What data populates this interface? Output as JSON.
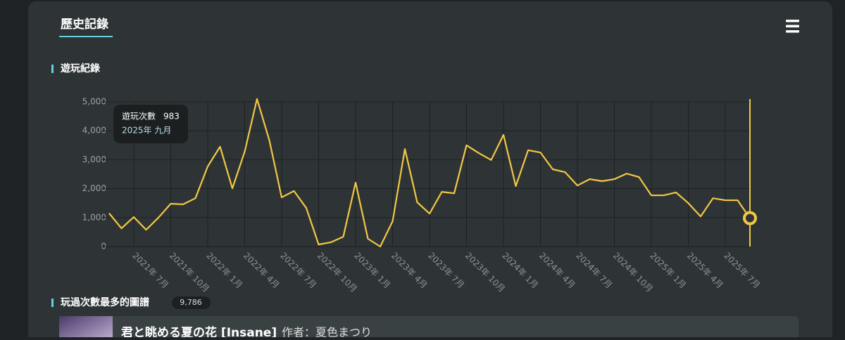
{
  "header": {
    "tab": "歷史記錄"
  },
  "sections": [
    {
      "title": "遊玩紀錄"
    },
    {
      "title": "玩過次數最多的圖譜",
      "badge": "9,786"
    }
  ],
  "chart_data": {
    "type": "line",
    "color": "#f2c744",
    "grid": true,
    "categories": [
      null,
      null,
      "2021年 7月",
      null,
      null,
      "2021年 10月",
      null,
      null,
      "2022年 1月",
      null,
      null,
      "2022年 4月",
      null,
      null,
      "2022年 7月",
      null,
      null,
      "2022年 10月",
      null,
      null,
      "2023年 1月",
      null,
      null,
      "2023年 4月",
      null,
      null,
      "2023年 7月",
      null,
      null,
      "2023年 10月",
      null,
      null,
      "2024年 1月",
      null,
      null,
      "2024年 4月",
      null,
      null,
      "2024年 7月",
      null,
      null,
      "2024年 10月",
      null,
      null,
      "2025年 1月",
      null,
      null,
      "2025年 4月",
      null,
      null,
      "2025年 7月",
      null,
      null
    ],
    "values": [
      1150,
      630,
      1020,
      580,
      1000,
      1480,
      1460,
      1670,
      2770,
      3450,
      2010,
      3280,
      5100,
      3670,
      1700,
      1920,
      1330,
      70,
      150,
      340,
      2210,
      270,
      0,
      870,
      3370,
      1530,
      1140,
      1890,
      1840,
      3500,
      3230,
      2990,
      3860,
      2090,
      3330,
      3250,
      2670,
      2570,
      2110,
      2330,
      2260,
      2330,
      2520,
      2400,
      1770,
      1770,
      1870,
      1500,
      1040,
      1670,
      1600,
      1600,
      983
    ],
    "ylim": [
      0,
      5000
    ],
    "yticks": [
      0,
      {
        "value": 1000,
        "label": "1,000"
      },
      {
        "value": 2000,
        "label": "2,000"
      },
      {
        "value": 3000,
        "label": "3,000"
      },
      {
        "value": 4000,
        "label": "4,000"
      },
      {
        "value": 5000,
        "label": "5,000"
      }
    ],
    "tooltip": {
      "label": "遊玩次數",
      "date": "2025年 九月"
    }
  },
  "top_play": {
    "title": "君と眺める夏の花 [Insane]",
    "author": "作者：夏色まつり"
  }
}
